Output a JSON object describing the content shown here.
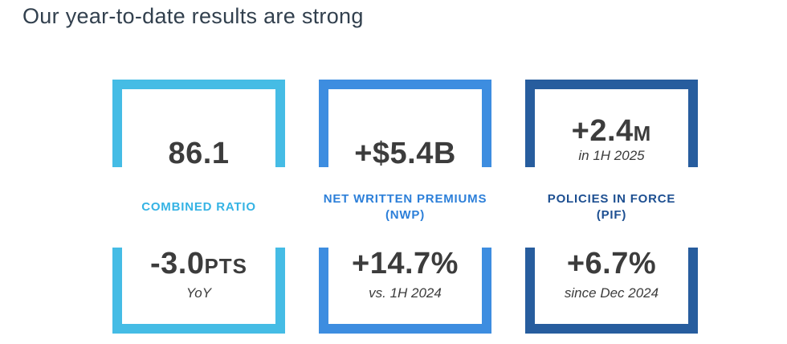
{
  "page": {
    "title": "Our year-to-date results are strong",
    "title_color": "#32404E",
    "background": "#FFFFFF",
    "value_color": "#3C3C3C"
  },
  "cards": [
    {
      "id": "combined-ratio",
      "border_color": "#45BCE5",
      "label_color": "#35B3E4",
      "top_value": "86.1",
      "label_line1": "COMBINED RATIO",
      "bottom_value": "-3.0",
      "bottom_suffix": "PTS",
      "bottom_subtext": "YoY"
    },
    {
      "id": "net-written-premiums",
      "border_color": "#3D8DE0",
      "label_color": "#2C7FD9",
      "top_value": "+$5.4B",
      "label_line1": "NET WRITTEN PREMIUMS",
      "label_line2": "(NWP)",
      "bottom_value": "+14.7%",
      "bottom_subtext": "vs. 1H 2024"
    },
    {
      "id": "policies-in-force",
      "border_color": "#275D9E",
      "label_color": "#1D4F91",
      "top_value": "+2.4",
      "top_suffix": "M",
      "top_subtext": "in 1H 2025",
      "label_line1": "POLICIES IN FORCE",
      "label_line2": "(PIF)",
      "bottom_value": "+6.7%",
      "bottom_subtext": "since Dec 2024"
    }
  ]
}
